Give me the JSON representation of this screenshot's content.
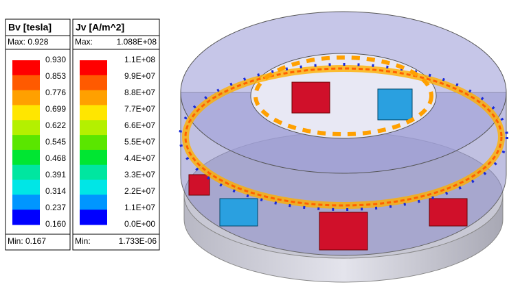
{
  "scale_colors": [
    "#ff0000",
    "#ff5a00",
    "#ffa000",
    "#ffe600",
    "#b4f000",
    "#5ae600",
    "#00e632",
    "#00e6a0",
    "#00e6e6",
    "#0096ff",
    "#0000ff"
  ],
  "legends": [
    {
      "title": "Bv [tesla]",
      "max_label": "Max: 0.928",
      "min_label": "Min: 0.167",
      "labels": [
        "0.930",
        "0.853",
        "0.776",
        "0.699",
        "0.622",
        "0.545",
        "0.468",
        "0.391",
        "0.314",
        "0.237",
        "0.160"
      ]
    },
    {
      "title": "Jv [A/m^2]",
      "max_label": "Max:",
      "max_value": "1.088E+08",
      "min_label": "Min:",
      "min_value": "1.733E-06",
      "labels": [
        "1.1E+08",
        "9.9E+07",
        "8.8E+07",
        "7.7E+07",
        "6.6E+07",
        "5.5E+07",
        "4.4E+07",
        "3.3E+07",
        "2.2E+07",
        "1.1E+07",
        "0.0E+00"
      ]
    }
  ]
}
